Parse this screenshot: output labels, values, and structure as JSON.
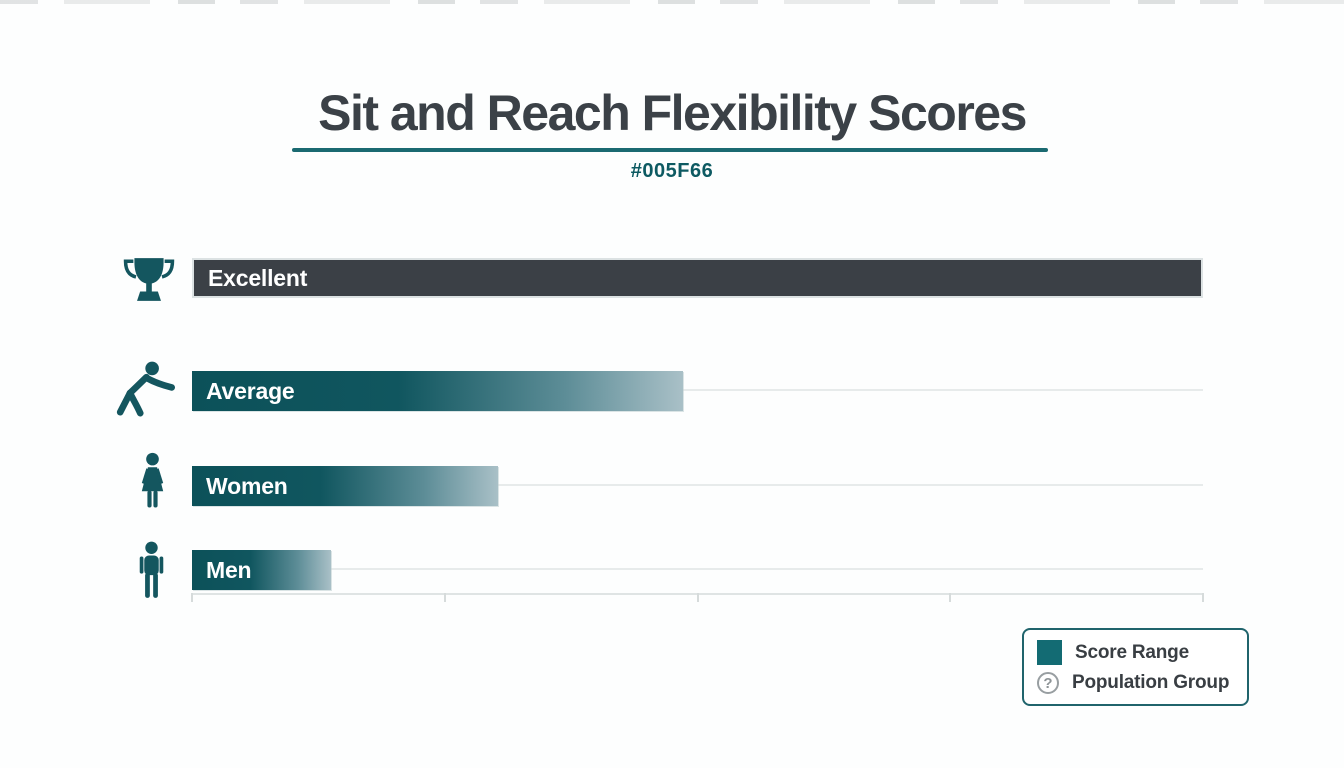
{
  "header": {
    "title": "Sit and Reach Flexibility Scores",
    "subtitle": "#005F66"
  },
  "chart_data": {
    "type": "bar",
    "orientation": "horizontal",
    "title": "Sit and Reach Flexibility Scores",
    "subtitle": "#005F66",
    "categories": [
      "Excellent",
      "Average",
      "Women",
      "Men"
    ],
    "values_pct_of_axis": [
      100,
      48.6,
      30.3,
      13.7
    ],
    "bars": [
      {
        "label": "Excellent",
        "icon": "trophy-icon",
        "value_pct": 100,
        "style": "dark"
      },
      {
        "label": "Average",
        "icon": "stretching-person-icon",
        "value_pct": 48.6,
        "style": "teal"
      },
      {
        "label": "Women",
        "icon": "woman-icon",
        "value_pct": 30.3,
        "style": "teal"
      },
      {
        "label": "Men",
        "icon": "man-icon",
        "value_pct": 13.7,
        "style": "teal"
      }
    ],
    "axis": {
      "tick_positions_pct": [
        0,
        25,
        50,
        75,
        100
      ],
      "tick_labels_visible": false,
      "gridlines": true
    },
    "colors": {
      "accent_teal": "#005F66",
      "bar_dark": "#3b4046",
      "bar_teal_start": "#0c5159",
      "bar_teal_end": "#a9c0c7",
      "title_text": "#3b4147",
      "gridline": "#e7ebeb"
    },
    "legend_position": "bottom-right"
  },
  "legend": {
    "items": [
      {
        "swatch": "teal-square",
        "label": "Score Range"
      },
      {
        "swatch": "question-icon",
        "label": "Population Group"
      }
    ]
  }
}
